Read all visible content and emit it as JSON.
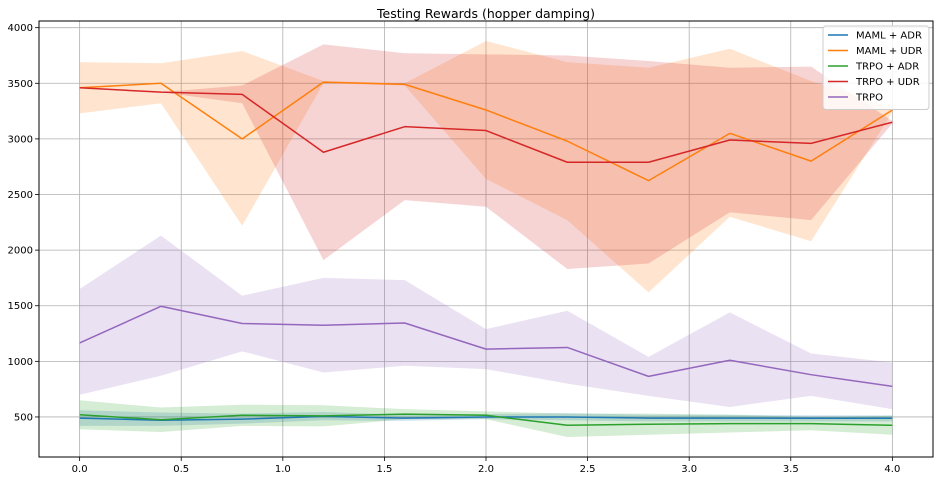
{
  "chart_data": {
    "type": "line",
    "title": "Testing Rewards (hopper damping)",
    "xlabel": "",
    "ylabel": "",
    "xlim": [
      -0.2,
      4.2
    ],
    "ylim": [
      140,
      4060
    ],
    "grid": true,
    "legend_position": "top-right",
    "x_ticks": [
      0.0,
      0.5,
      1.0,
      1.5,
      2.0,
      2.5,
      3.0,
      3.5,
      4.0
    ],
    "x_tick_labels": [
      "0.0",
      "0.5",
      "1.0",
      "1.5",
      "2.0",
      "2.5",
      "3.0",
      "3.5",
      "4.0"
    ],
    "y_ticks": [
      500,
      1000,
      1500,
      2000,
      2500,
      3000,
      3500,
      4000
    ],
    "y_tick_labels": [
      "500",
      "1000",
      "1500",
      "2000",
      "2500",
      "3000",
      "3500",
      "4000"
    ],
    "x": [
      0.0,
      0.4,
      0.8,
      1.2,
      1.6,
      2.0,
      2.4,
      2.8,
      3.2,
      3.6,
      4.0
    ],
    "series": [
      {
        "name": "MAML + ADR",
        "color": "#1f77b4",
        "values": [
          490,
          470,
          480,
          505,
          490,
          500,
          500,
          490,
          490,
          488,
          488
        ],
        "lower": [
          420,
          420,
          440,
          470,
          465,
          480,
          470,
          460,
          460,
          460,
          460
        ],
        "upper": [
          560,
          540,
          530,
          545,
          520,
          525,
          535,
          520,
          520,
          515,
          515
        ]
      },
      {
        "name": "MAML + UDR",
        "color": "#ff7f0e",
        "values": [
          3460,
          3500,
          3000,
          3510,
          3490,
          3260,
          2980,
          2625,
          3050,
          2800,
          3260
        ],
        "lower": [
          3230,
          3320,
          2220,
          3500,
          3480,
          2640,
          2270,
          1620,
          2300,
          2080,
          3240
        ],
        "upper": [
          3690,
          3680,
          3790,
          3520,
          3500,
          3880,
          3690,
          3640,
          3810,
          3520,
          3280
        ]
      },
      {
        "name": "TRPO + ADR",
        "color": "#2ca02c",
        "values": [
          520,
          475,
          515,
          510,
          525,
          515,
          425,
          435,
          440,
          440,
          425
        ],
        "lower": [
          390,
          365,
          420,
          415,
          480,
          480,
          320,
          340,
          360,
          380,
          340
        ],
        "upper": [
          650,
          585,
          610,
          605,
          570,
          550,
          530,
          530,
          520,
          500,
          510
        ]
      },
      {
        "name": "TRPO + UDR",
        "color": "#d62728",
        "values": [
          3460,
          3420,
          3400,
          2880,
          3110,
          3075,
          2790,
          2790,
          2990,
          2960,
          3150
        ],
        "lower": [
          3460,
          3420,
          3320,
          1910,
          2450,
          2390,
          1830,
          1880,
          2340,
          2270,
          3140
        ],
        "upper": [
          3460,
          3420,
          3480,
          3850,
          3770,
          3760,
          3750,
          3700,
          3640,
          3650,
          3160
        ]
      },
      {
        "name": "TRPO",
        "color": "#9467bd",
        "values": [
          1165,
          1495,
          1340,
          1325,
          1345,
          1110,
          1125,
          865,
          1010,
          880,
          775
        ],
        "lower": [
          700,
          870,
          1090,
          900,
          960,
          930,
          800,
          690,
          590,
          690,
          570
        ],
        "upper": [
          1650,
          2130,
          1590,
          1750,
          1730,
          1290,
          1455,
          1040,
          1440,
          1070,
          990
        ]
      }
    ]
  }
}
